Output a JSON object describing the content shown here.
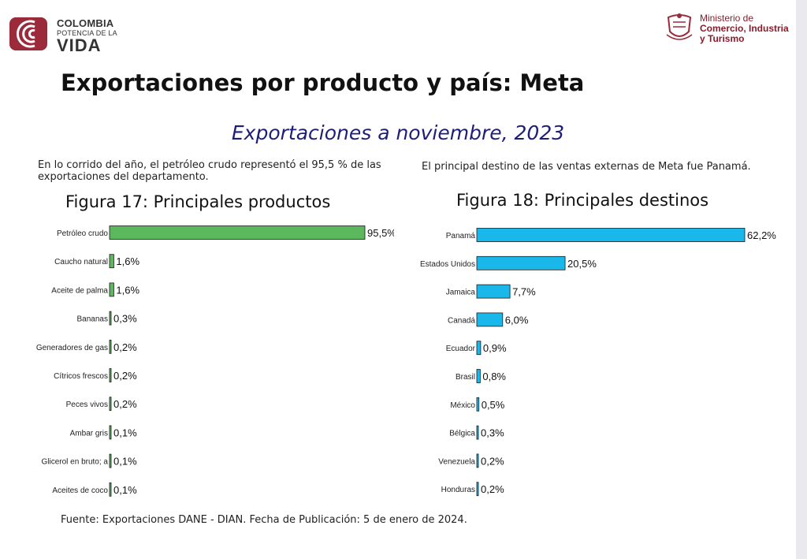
{
  "header": {
    "brand_line1": "COLOMBIA",
    "brand_line2": "POTENCIA DE LA",
    "brand_line3": "VIDA",
    "ministry_line1": "Ministerio de",
    "ministry_line2": "Comercio, Industria",
    "ministry_line3": "y Turismo",
    "brand_color": "#9b2b3a"
  },
  "page_title": "Exportaciones por producto y país: Meta",
  "subtitle": "Exportaciones a noviembre, 2023",
  "desc_left": "En lo corrido del año, el petróleo crudo representó el 95,5 % de las exportaciones del departamento.",
  "desc_right": "El principal destino de las ventas externas de Meta fue Panamá.",
  "source": "Fuente: Exportaciones DANE - DIAN. Fecha de Publicación: 5 de enero de 2024.",
  "chart_data": [
    {
      "type": "bar",
      "orientation": "horizontal",
      "title": "Figura 17: Principales productos",
      "color": "#5cb85c",
      "categories": [
        "Petróleo crudo",
        "Caucho natural",
        "Aceite de palma",
        "Bananas",
        "Generadores de gas",
        "Cítricos frescos",
        "Peces vivos",
        "Ambar gris",
        "Glicerol en bruto; a",
        "Aceites de coco"
      ],
      "values": [
        95.5,
        1.6,
        1.6,
        0.3,
        0.2,
        0.2,
        0.2,
        0.1,
        0.1,
        0.1
      ],
      "value_labels": [
        "95,5%",
        "1,6%",
        "1,6%",
        "0,3%",
        "0,2%",
        "0,2%",
        "0,2%",
        "0,1%",
        "0,1%",
        "0,1%"
      ],
      "xlim": [
        0,
        95.5
      ]
    },
    {
      "type": "bar",
      "orientation": "horizontal",
      "title": "Figura 18: Principales destinos",
      "color": "#1ab8ea",
      "categories": [
        "Panamá",
        "Estados Unidos",
        "Jamaica",
        "Canadá",
        "Ecuador",
        "Brasil",
        "México",
        "Bélgica",
        "Venezuela",
        "Honduras"
      ],
      "values": [
        62.2,
        20.5,
        7.7,
        6.0,
        0.9,
        0.8,
        0.5,
        0.3,
        0.2,
        0.2
      ],
      "value_labels": [
        "62,2%",
        "20,5%",
        "7,7%",
        "6,0%",
        "0,9%",
        "0,8%",
        "0,5%",
        "0,3%",
        "0,2%",
        "0,2%"
      ],
      "xlim": [
        0,
        62.2
      ]
    }
  ]
}
